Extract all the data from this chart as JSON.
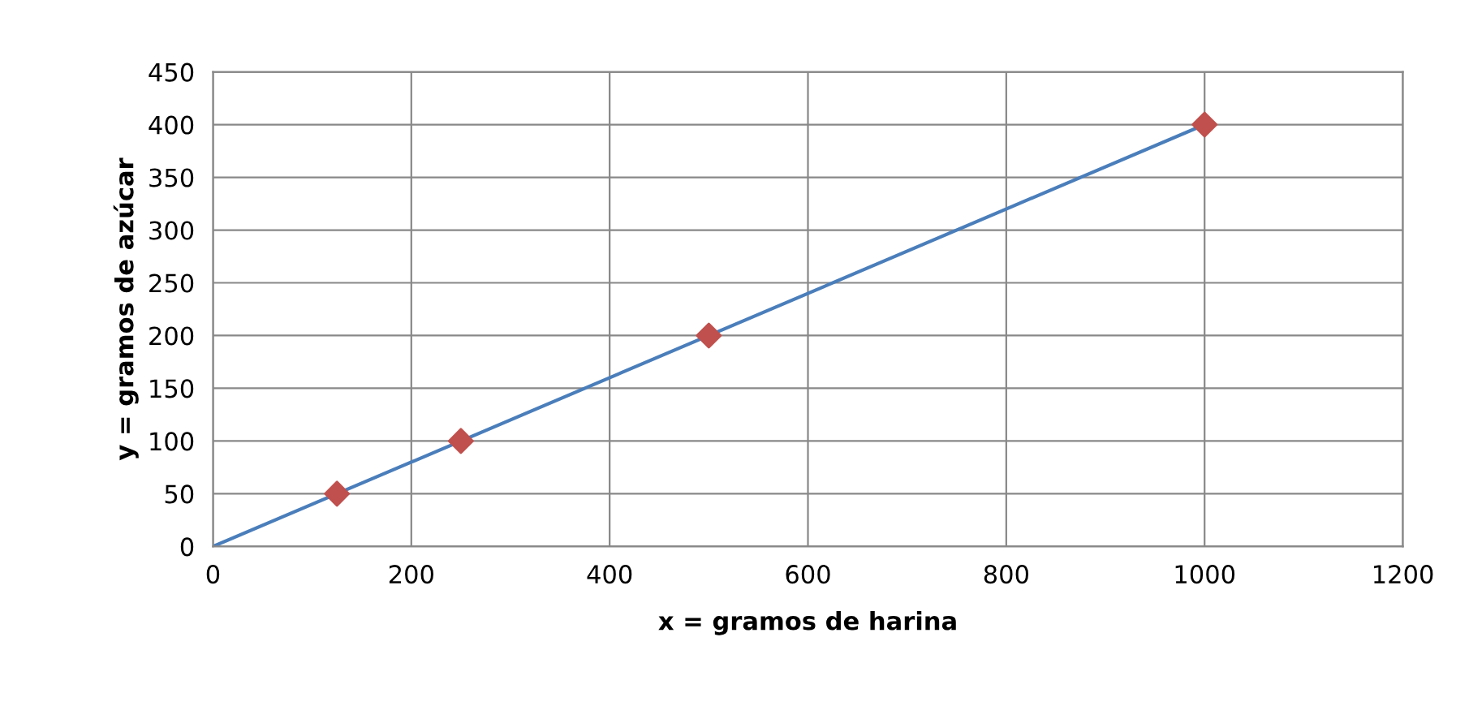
{
  "chart_data": {
    "type": "scatter",
    "xlabel": "x = gramos de harina",
    "ylabel": "y = gramos de azúcar",
    "xlim": [
      0,
      1200
    ],
    "xticks": [
      0,
      200,
      400,
      600,
      800,
      1000,
      1200
    ],
    "ylim": [
      0,
      450
    ],
    "yticks": [
      0,
      50,
      100,
      150,
      200,
      250,
      300,
      350,
      400,
      450
    ],
    "grid": true,
    "marker": "diamond",
    "series": [
      {
        "type": "line",
        "color": "#4a7ebb",
        "x": [
          0,
          1000
        ],
        "values": [
          0,
          400
        ],
        "marker": "none"
      },
      {
        "color": "#c0504d",
        "x": [
          125,
          250,
          500,
          1000
        ],
        "values": [
          50,
          100,
          200,
          400
        ]
      }
    ]
  }
}
